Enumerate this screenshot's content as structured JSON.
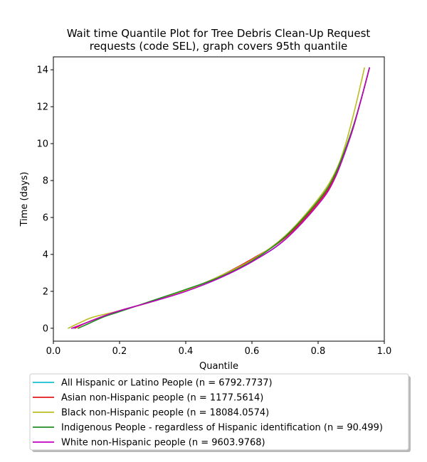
{
  "chart_data": {
    "type": "line",
    "title_lines": [
      "Wait time Quantile Plot for Tree Debris Clean-Up Request",
      "requests (code SEL), graph covers 95th quantile"
    ],
    "xlabel": "Quantile",
    "ylabel": "Time (days)",
    "xlim": [
      0.0,
      1.0
    ],
    "ylim": [
      -0.7,
      14.7
    ],
    "xticks": [
      0.0,
      0.2,
      0.4,
      0.6,
      0.8,
      1.0
    ],
    "xtick_labels": [
      "0.0",
      "0.2",
      "0.4",
      "0.6",
      "0.8",
      "1.0"
    ],
    "yticks": [
      0,
      2,
      4,
      6,
      8,
      10,
      12,
      14
    ],
    "ytick_labels": [
      "0",
      "2",
      "4",
      "6",
      "8",
      "10",
      "12",
      "14"
    ],
    "grid": false,
    "legend_position": "below-chart",
    "series": [
      {
        "name": "All Hispanic or Latino People (n = 6792.7737)",
        "color": "#17becf",
        "x": [
          0.06,
          0.1,
          0.15,
          0.2,
          0.3,
          0.4,
          0.5,
          0.6,
          0.7,
          0.8,
          0.85,
          0.9,
          0.93,
          0.955
        ],
        "y": [
          0,
          0.3,
          0.65,
          0.95,
          1.45,
          2.0,
          2.7,
          3.6,
          4.8,
          6.8,
          8.2,
          10.6,
          12.4,
          14.1
        ]
      },
      {
        "name": "Asian non-Hispanic people (n = 1177.5614)",
        "color": "#e31a1c",
        "x": [
          0.065,
          0.1,
          0.15,
          0.2,
          0.3,
          0.4,
          0.5,
          0.6,
          0.7,
          0.8,
          0.85,
          0.9,
          0.93,
          0.955
        ],
        "y": [
          0,
          0.3,
          0.65,
          0.95,
          1.45,
          2.05,
          2.8,
          3.75,
          4.9,
          6.8,
          8.2,
          10.6,
          12.4,
          14.1
        ]
      },
      {
        "name": "Black non-Hispanic people (n = 18084.0574)",
        "color": "#bcbd22",
        "x": [
          0.045,
          0.08,
          0.12,
          0.2,
          0.3,
          0.4,
          0.5,
          0.6,
          0.7,
          0.8,
          0.85,
          0.88,
          0.91,
          0.94
        ],
        "y": [
          0,
          0.3,
          0.6,
          0.95,
          1.45,
          2.05,
          2.8,
          3.7,
          5.0,
          7.0,
          8.4,
          9.8,
          11.8,
          14.1
        ]
      },
      {
        "name": "Indigenous People - regardless of Hispanic identification (n = 90.499)",
        "color": "#228b22",
        "x": [
          0.075,
          0.1,
          0.15,
          0.2,
          0.3,
          0.4,
          0.5,
          0.6,
          0.7,
          0.8,
          0.85,
          0.9,
          0.93,
          0.955
        ],
        "y": [
          0,
          0.2,
          0.6,
          0.9,
          1.5,
          2.1,
          2.75,
          3.65,
          4.95,
          6.9,
          8.3,
          10.6,
          12.4,
          14.1
        ]
      },
      {
        "name": "White non-Hispanic people (n = 9603.9768)",
        "color": "#c000c0",
        "x": [
          0.055,
          0.1,
          0.15,
          0.2,
          0.3,
          0.4,
          0.5,
          0.6,
          0.7,
          0.8,
          0.85,
          0.9,
          0.93,
          0.955
        ],
        "y": [
          0,
          0.3,
          0.65,
          0.95,
          1.45,
          2.0,
          2.7,
          3.6,
          4.8,
          6.7,
          8.1,
          10.5,
          12.4,
          14.1
        ]
      }
    ]
  }
}
